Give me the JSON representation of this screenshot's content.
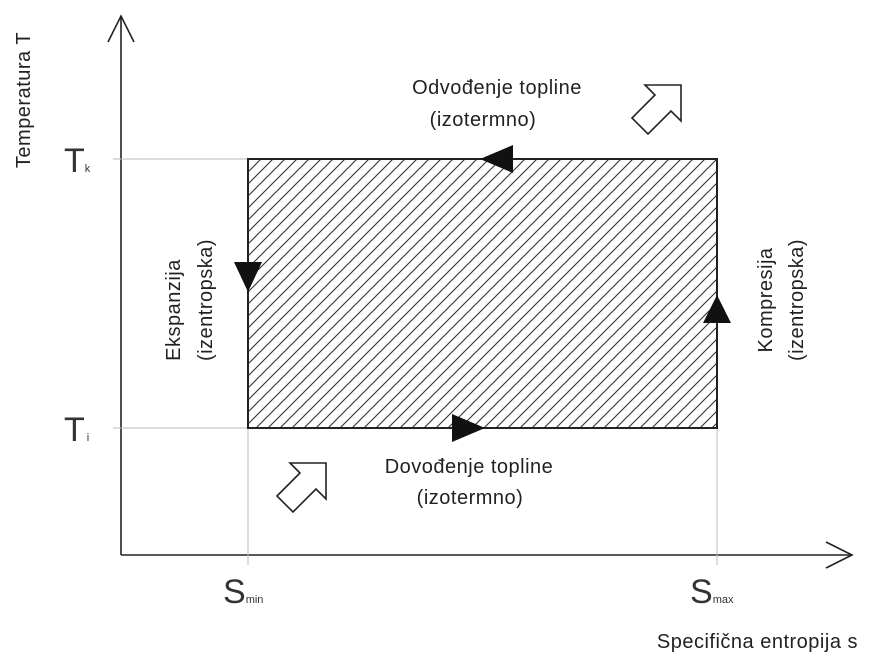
{
  "axes": {
    "y_label": "Temperatura T",
    "x_label": "Specifična entropija s"
  },
  "y_ticks": [
    {
      "symbol": "T",
      "sub": "k"
    },
    {
      "symbol": "T",
      "sub": "i"
    }
  ],
  "x_ticks": [
    {
      "symbol": "S",
      "sub": "min"
    },
    {
      "symbol": "S",
      "sub": "max"
    }
  ],
  "processes": {
    "top": [
      "Odvođenje topline",
      "(izotermno)"
    ],
    "bottom": [
      "Dovođenje topline",
      "(izotermno)"
    ],
    "left": [
      "Ekspanzija",
      "(izentropska)"
    ],
    "right": [
      "Kompresija",
      "(izentropska)"
    ]
  }
}
